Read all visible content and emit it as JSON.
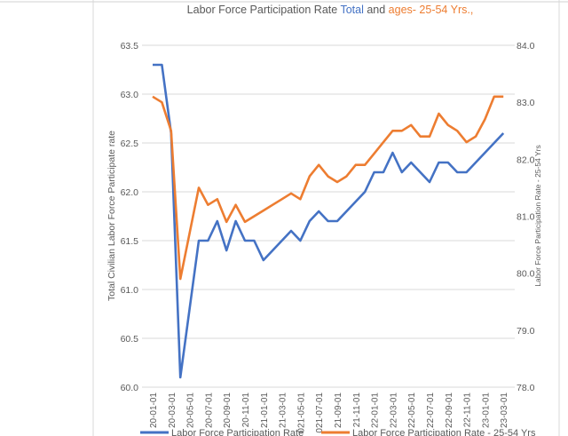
{
  "chart_data": {
    "type": "line",
    "title": {
      "prefix": "Labor Force Participation Rate ",
      "total": "Total",
      "middle": " and ",
      "ages": "ages- 25-54 Yrs.,"
    },
    "ylabel": "Total Civilian Labor Force Participate rate",
    "y2label": "Labor Force Participation Rate - 25-54 Yrs",
    "ylim": [
      60.0,
      63.5
    ],
    "y2lim": [
      78.0,
      84.0
    ],
    "yticks": [
      "60.0",
      "60.5",
      "61.0",
      "61.5",
      "62.0",
      "62.5",
      "63.0",
      "63.5"
    ],
    "y2ticks": [
      "78.0",
      "79.0",
      "80.0",
      "81.0",
      "82.0",
      "83.0",
      "84.0"
    ],
    "grid": true,
    "legend_position": "bottom",
    "x": [
      "2020-01",
      "2020-02",
      "2020-03",
      "2020-04",
      "2020-05",
      "2020-06",
      "2020-07",
      "2020-08",
      "2020-09",
      "2020-10",
      "2020-11",
      "2020-12",
      "2021-01",
      "2021-02",
      "2021-03",
      "2021-04",
      "2021-05",
      "2021-06",
      "2021-07",
      "2021-08",
      "2021-09",
      "2021-10",
      "2021-11",
      "2021-12",
      "2022-01",
      "2022-02",
      "2022-03",
      "2022-04",
      "2022-05",
      "2022-06",
      "2022-07",
      "2022-08",
      "2022-09",
      "2022-10",
      "2022-11",
      "2022-12",
      "2023-01",
      "2023-02",
      "2023-03"
    ],
    "xtick_labels": [
      "20-01-01",
      "20-03-01",
      "20-05-01",
      "20-07-01",
      "20-09-01",
      "20-11-01",
      "21-01-01",
      "21-03-01",
      "021-05-01",
      "021-07-01",
      "21-09-01",
      "21-11-01",
      "22-01-01",
      "22-03-01",
      "22-05-01",
      "22-07-01",
      "22-09-01",
      "22-11-01",
      "23-01-01",
      "23-03-01"
    ],
    "series": [
      {
        "name": "Labor Force Participation Rate",
        "axis": "left",
        "color": "#4472C4",
        "values": [
          63.3,
          63.3,
          62.6,
          60.1,
          60.8,
          61.5,
          61.5,
          61.7,
          61.4,
          61.7,
          61.5,
          61.5,
          61.3,
          61.4,
          61.5,
          61.6,
          61.5,
          61.7,
          61.8,
          61.7,
          61.7,
          61.8,
          61.9,
          62.0,
          62.2,
          62.2,
          62.4,
          62.2,
          62.3,
          62.2,
          62.1,
          62.3,
          62.3,
          62.2,
          62.2,
          62.3,
          62.4,
          62.5,
          62.6
        ]
      },
      {
        "name": "Labor Force Participation Rate - 25-54 Yrs",
        "axis": "right",
        "color": "#ED7D31",
        "values": [
          83.1,
          83.0,
          82.5,
          79.9,
          80.7,
          81.5,
          81.2,
          81.3,
          80.9,
          81.2,
          80.9,
          81.0,
          81.1,
          81.2,
          81.3,
          81.4,
          81.3,
          81.7,
          81.9,
          81.7,
          81.6,
          81.7,
          81.9,
          81.9,
          82.1,
          82.3,
          82.5,
          82.5,
          82.6,
          82.4,
          82.4,
          82.8,
          82.6,
          82.5,
          82.3,
          82.4,
          82.7,
          83.1,
          83.1
        ]
      }
    ]
  }
}
